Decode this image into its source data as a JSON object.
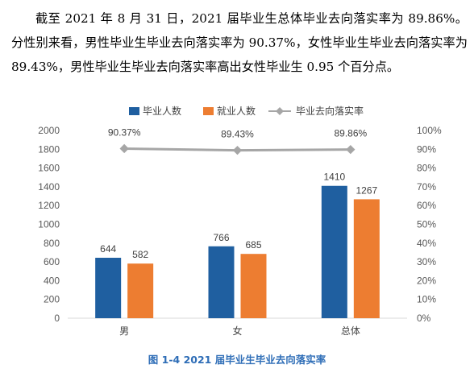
{
  "paragraph": "截至 2021 年 8 月 31 日，2021 届毕业生总体毕业去向落实率为 89.86%。分性别来看，男性毕业生毕业去向落实率为 90.37%，女性毕业生毕业去向落实率为 89.43%，男性毕业生毕业去向落实率高出女性毕业生 0.95 个百分点。",
  "caption": "图 1-4 2021 届毕业生毕业去向落实率",
  "colors": {
    "graduates": "#1f5fa0",
    "employed": "#ed7d31",
    "rate": "#a6a6a6"
  },
  "chart_data": {
    "type": "bar",
    "title": "",
    "categories": [
      "男",
      "女",
      "总体"
    ],
    "series": [
      {
        "name": "毕业人数",
        "type": "bar",
        "axis": "left",
        "values": [
          644,
          766,
          1410
        ]
      },
      {
        "name": "就业人数",
        "type": "bar",
        "axis": "left",
        "values": [
          582,
          685,
          1267
        ]
      },
      {
        "name": "毕业去向落实率",
        "type": "line",
        "axis": "right",
        "values": [
          90.37,
          89.43,
          89.86
        ],
        "labels": [
          "90.37%",
          "89.43%",
          "89.86%"
        ]
      }
    ],
    "ylim": [
      0,
      2000
    ],
    "yticks": [
      "0",
      "200",
      "400",
      "600",
      "800",
      "1000",
      "1200",
      "1400",
      "1600",
      "1800",
      "2000"
    ],
    "y2lim": [
      0,
      100
    ],
    "y2ticks": [
      "0%",
      "10%",
      "20%",
      "30%",
      "40%",
      "50%",
      "60%",
      "70%",
      "80%",
      "90%",
      "100%"
    ],
    "legend_position": "top",
    "grid": false
  }
}
